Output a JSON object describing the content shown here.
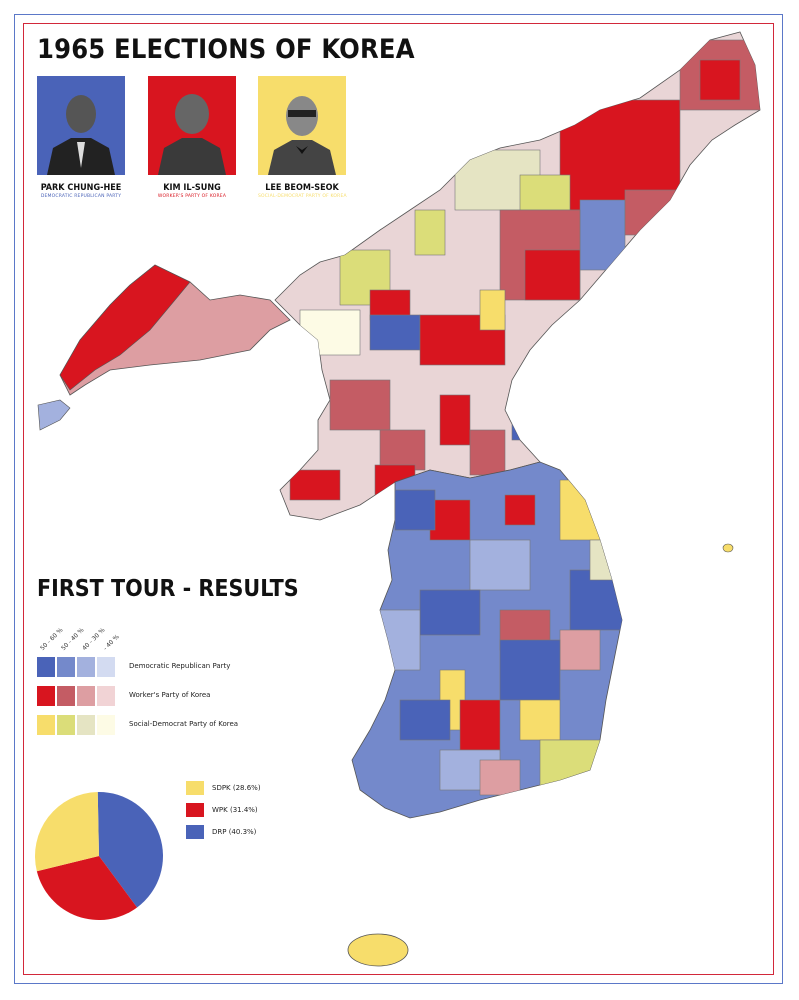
{
  "title": "1965 ELECTIONS OF KOREA",
  "candidates": [
    {
      "name": "PARK CHUNG-HEE",
      "party": "DEMOCRATIC REPUBLICAN PARTY",
      "color": "#4a63b8"
    },
    {
      "name": "KIM IL-SUNG",
      "party": "WORKER'S PARTY OF KOREA",
      "color": "#d8151f"
    },
    {
      "name": "LEE BEOM-SEOK",
      "party": "SOCIAL-DEMOCRAT PARTY OF KOREA",
      "color": "#f7dd6b"
    }
  ],
  "results_title": "FIRST TOUR - RESULTS",
  "legend": {
    "ranges": [
      "50 - 60 %",
      "50 - 40 %",
      "40 - 30 %",
      "- 40 %"
    ],
    "rows": [
      {
        "label": "Democratic Republican Party",
        "colors": [
          "#4a63b8",
          "#7489cb",
          "#a3b1de",
          "#d3dbf1"
        ]
      },
      {
        "label": "Worker's Party of Korea",
        "colors": [
          "#d8151f",
          "#c45c64",
          "#dd9ea2",
          "#f1d3d5"
        ]
      },
      {
        "label": "Social-Democrat Party of Korea",
        "colors": [
          "#f7dd6b",
          "#dbdd79",
          "#e5e4c3",
          "#fdfbe5"
        ]
      }
    ]
  },
  "pie_legend": [
    {
      "label": "SDPK (28.6%)",
      "color": "#f7dd6b"
    },
    {
      "label": "WPK (31.4%)",
      "color": "#d8151f"
    },
    {
      "label": "DRP (40.3%)",
      "color": "#4a63b8"
    }
  ],
  "chart_data": {
    "type": "pie",
    "categories": [
      "DRP",
      "WPK",
      "SDPK"
    ],
    "values": [
      40.3,
      31.4,
      28.6
    ],
    "colors": [
      "#4a63b8",
      "#d8151f",
      "#f7dd6b"
    ]
  }
}
